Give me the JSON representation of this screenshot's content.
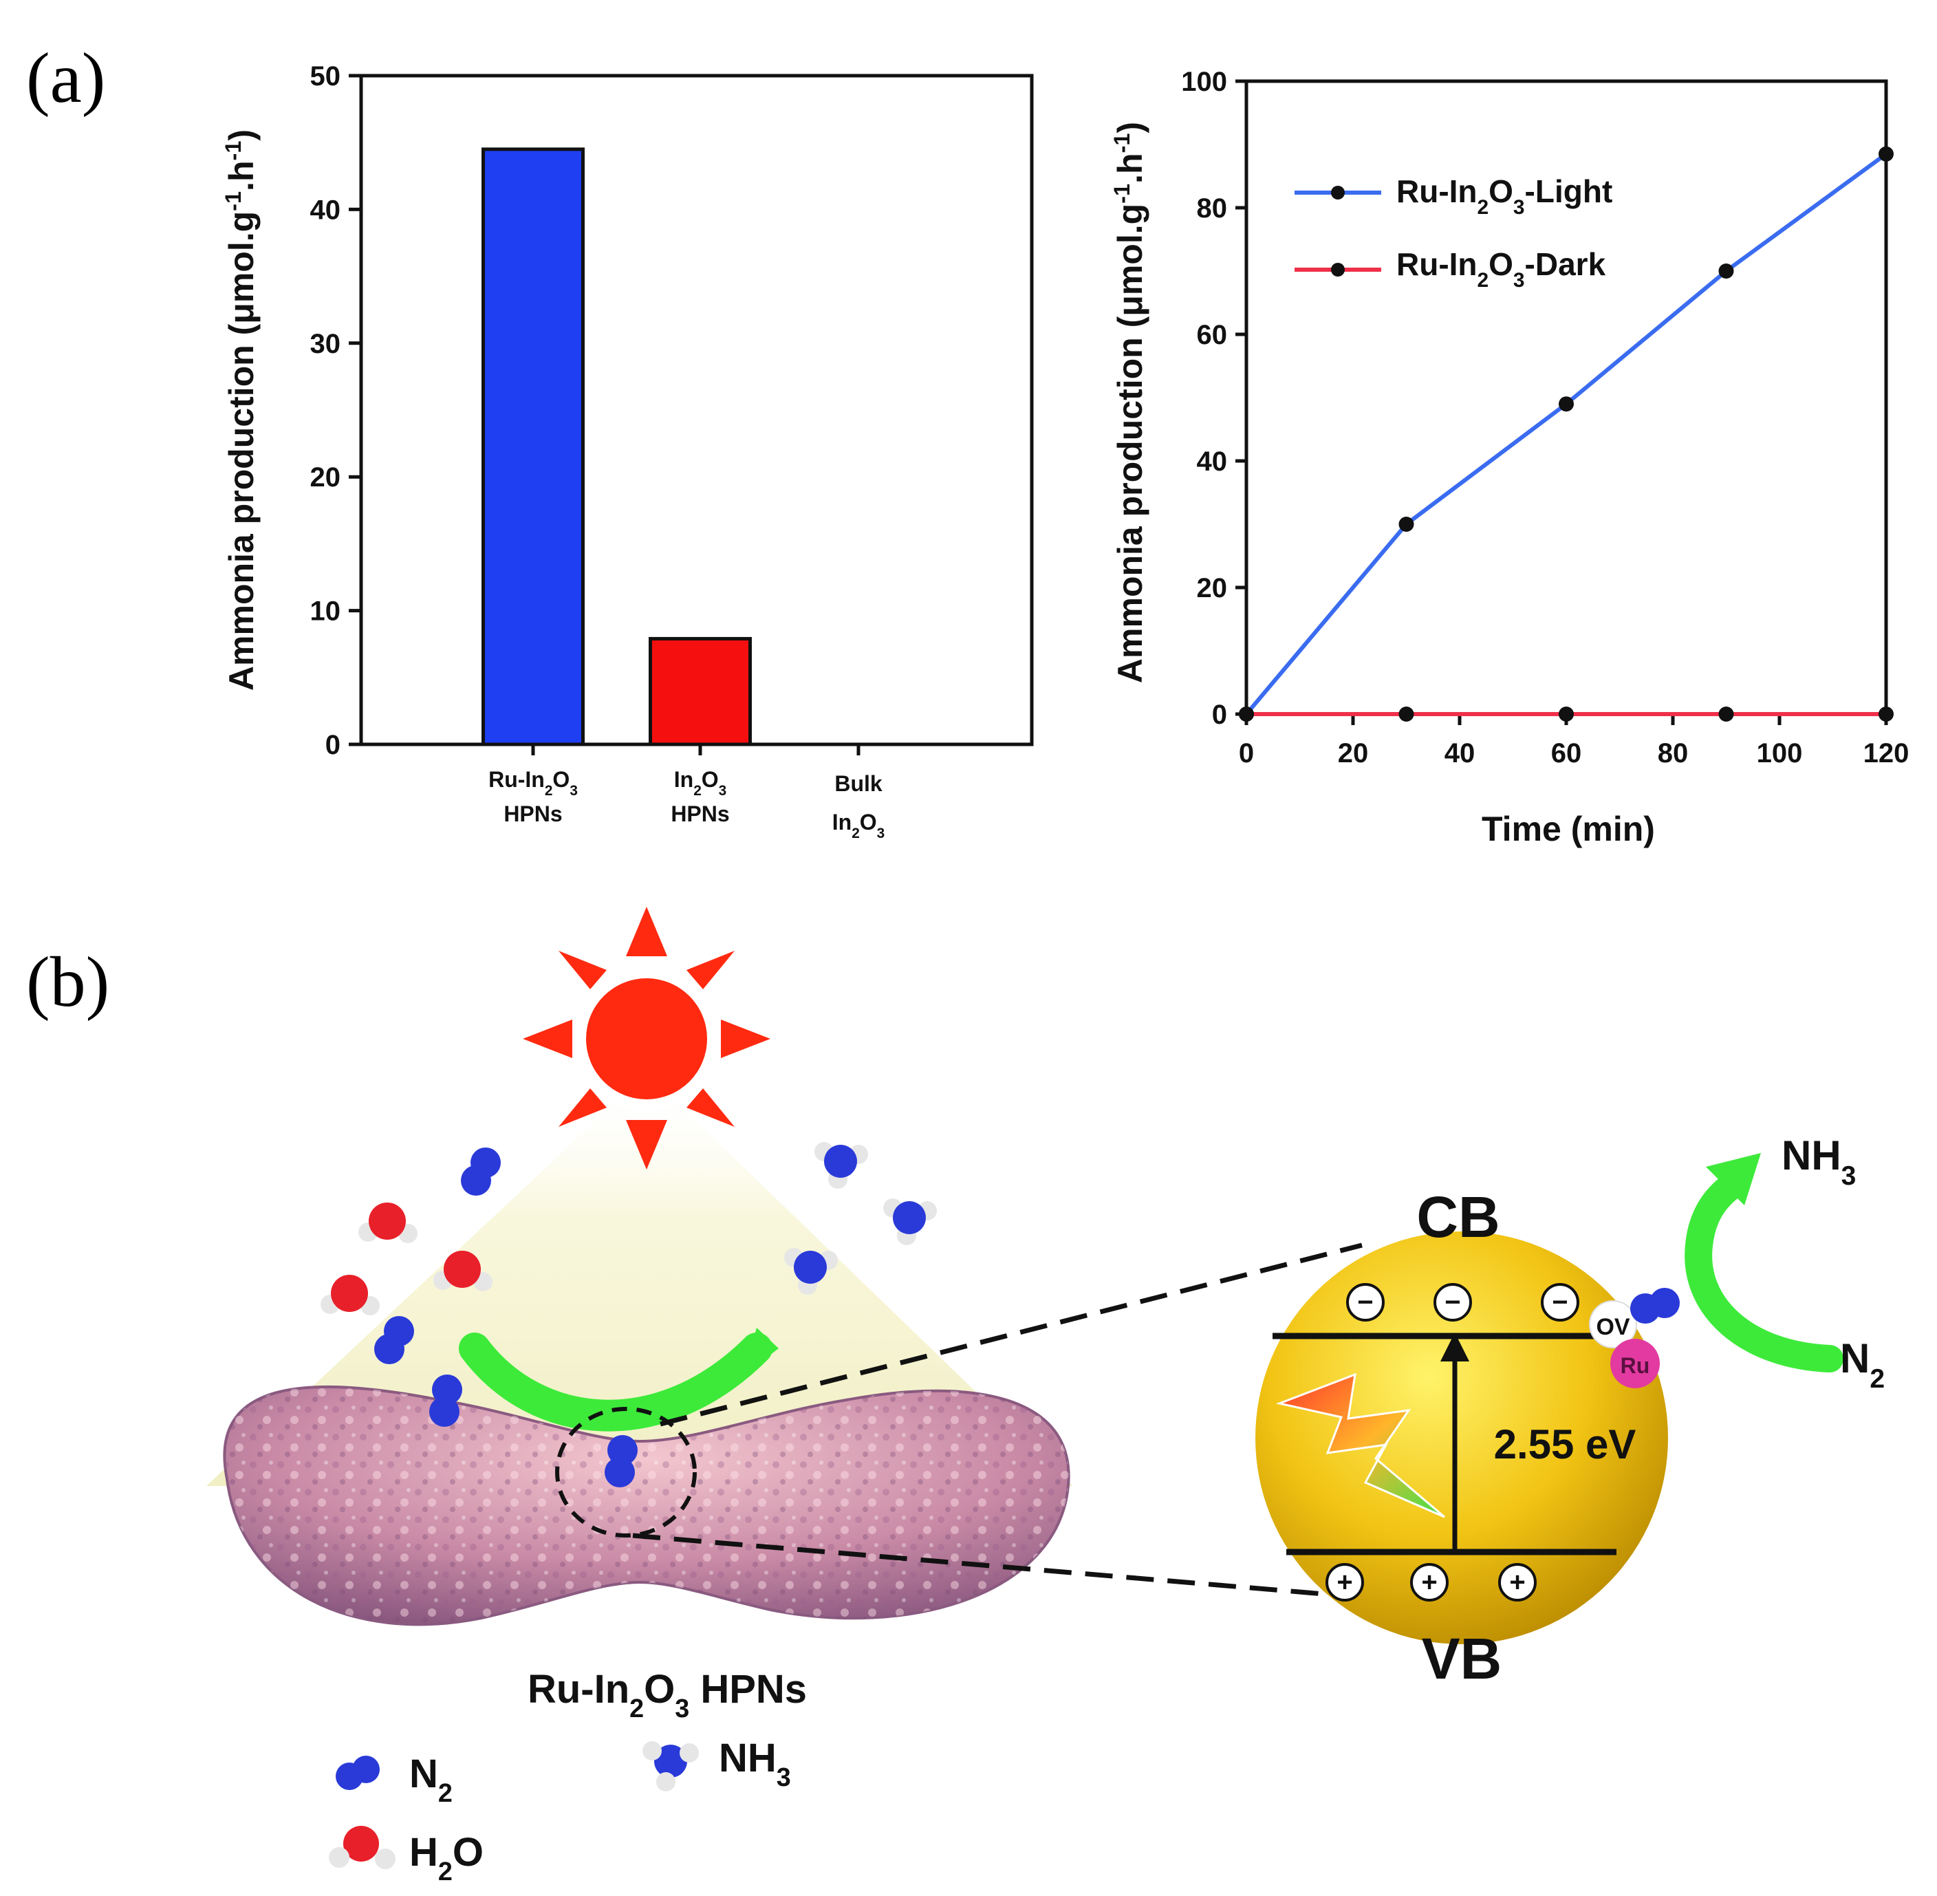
{
  "panels": {
    "a": "(a)",
    "b": "(b)"
  },
  "chart_data": [
    {
      "type": "bar",
      "categories": [
        [
          "Ru-In",
          {
            "sub": "2"
          },
          "O",
          {
            "sub": "3"
          },
          {
            "br": 1
          },
          "HPNs"
        ],
        [
          "In",
          {
            "sub": "2"
          },
          "O",
          {
            "sub": "3"
          },
          {
            "br": 1
          },
          "HPNs"
        ],
        [
          "Bulk",
          {
            "br": 1
          },
          "In",
          {
            "sub": "2"
          },
          "O",
          {
            "sub": "3"
          }
        ]
      ],
      "values": [
        44.5,
        7.9,
        0
      ],
      "colors": [
        "#1f3ff2",
        "#f50f0f",
        "#999999"
      ],
      "ylabel": [
        "Ammonia production (μmol.g",
        {
          "sup": "-1"
        },
        ".h",
        {
          "sup": "-1"
        },
        ")"
      ],
      "ylim": [
        0,
        50
      ],
      "yticks": [
        0,
        10,
        20,
        30,
        40,
        50
      ],
      "grid": false
    },
    {
      "type": "line",
      "x": [
        0,
        30,
        60,
        90,
        120
      ],
      "series": [
        {
          "name": [
            "Ru-In",
            {
              "sub": "2"
            },
            "O",
            {
              "sub": "3"
            },
            "-Light"
          ],
          "values": [
            0,
            30,
            49,
            70,
            88.5
          ],
          "color": "#3a6cf0"
        },
        {
          "name": [
            "Ru-In",
            {
              "sub": "2"
            },
            "O",
            {
              "sub": "3"
            },
            "-Dark"
          ],
          "values": [
            0,
            0,
            0,
            0,
            0
          ],
          "color": "#f0304a"
        }
      ],
      "xlabel": "Time (min)",
      "ylabel": [
        "Ammonia production (μmol.g",
        {
          "sup": "-1"
        },
        ".h",
        {
          "sup": "-1"
        },
        ")"
      ],
      "xlim": [
        0,
        120
      ],
      "ylim": [
        0,
        100
      ],
      "xticks": [
        0,
        20,
        40,
        60,
        80,
        100,
        120
      ],
      "yticks": [
        0,
        20,
        40,
        60,
        80,
        100
      ],
      "legend_position": "top-left",
      "grid": false
    }
  ],
  "diagram": {
    "catalyst_label": [
      "Ru-In",
      {
        "sub": "2"
      },
      "O",
      {
        "sub": "3"
      },
      " HPNs"
    ],
    "cb": "CB",
    "vb": "VB",
    "bandgap": "2.55 eV",
    "ov": "OV",
    "ru": "Ru",
    "minus": "−",
    "plus": "+",
    "product": [
      "NH",
      {
        "sub": "3"
      }
    ],
    "reactant": [
      "N",
      {
        "sub": "2"
      }
    ],
    "legend": {
      "n2": [
        "N",
        {
          "sub": "2"
        }
      ],
      "nh3": [
        "NH",
        {
          "sub": "3"
        }
      ],
      "h2o": [
        "H",
        {
          "sub": "2"
        },
        "O"
      ]
    },
    "colors": {
      "nitrogen": "#2a3ad8",
      "oxygen": "#e8202a",
      "hydrogen": "#e6e6e6",
      "sun": "#ff2a10",
      "arrow": "#3dea3a",
      "sphere": "#e8b400",
      "ru": "#e23aa0"
    }
  }
}
